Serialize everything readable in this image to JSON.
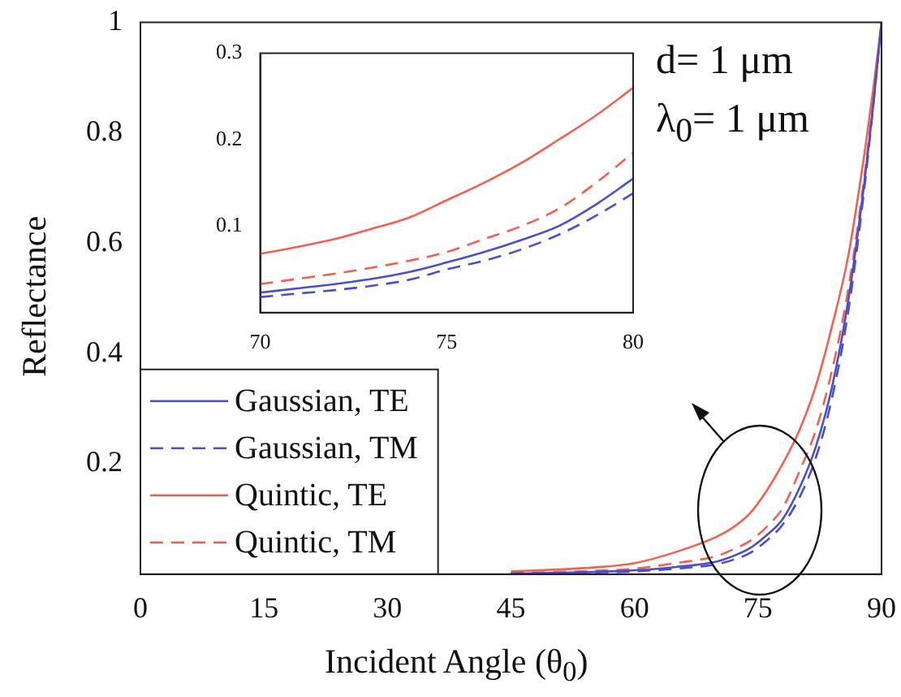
{
  "chart_data": [
    {
      "type": "line",
      "xlabel": "Incident Angle (θ$_{0}$)",
      "ylabel": "Reflectance",
      "xlim": [
        0,
        90
      ],
      "xticks": [
        0,
        15,
        30,
        45,
        60,
        75,
        90
      ],
      "ylim": [
        0,
        1
      ],
      "yticks": [
        0.2,
        0.4,
        0.6,
        0.8,
        1
      ],
      "legend": "bottom left",
      "marker": "none",
      "annotations": [
        "d= 1 μm",
        "λ$_{0}$= 1 μm"
      ],
      "x": [
        45,
        55,
        60,
        65,
        70,
        72,
        74,
        76,
        78,
        80,
        82,
        84,
        86,
        88,
        89,
        90
      ],
      "series": [
        {
          "name": "Gaussian, TE",
          "color": "#4a4ed0",
          "line_style": "solid",
          "values": [
            0.001,
            0.004,
            0.007,
            0.013,
            0.023,
            0.033,
            0.047,
            0.07,
            0.1,
            0.155,
            0.23,
            0.34,
            0.5,
            0.72,
            0.85,
            1
          ]
        },
        {
          "name": "Gaussian, TM",
          "color": "#4a4ed0",
          "line_style": "dashed",
          "values": [
            0.001,
            0.003,
            0.005,
            0.01,
            0.018,
            0.026,
            0.038,
            0.06,
            0.09,
            0.138,
            0.21,
            0.32,
            0.48,
            0.71,
            0.85,
            1
          ]
        },
        {
          "name": "Quintic, TE",
          "color": "#f26050",
          "line_style": "solid",
          "values": [
            0.005,
            0.012,
            0.02,
            0.04,
            0.068,
            0.085,
            0.11,
            0.15,
            0.2,
            0.26,
            0.34,
            0.45,
            0.58,
            0.77,
            0.88,
            1
          ]
        },
        {
          "name": "Quintic, TM",
          "color": "#f26050",
          "line_style": "dashed",
          "values": [
            0.002,
            0.006,
            0.01,
            0.02,
            0.033,
            0.045,
            0.06,
            0.085,
            0.12,
            0.185,
            0.26,
            0.37,
            0.52,
            0.73,
            0.86,
            1
          ]
        }
      ]
    },
    {
      "type": "line",
      "xlim": [
        70,
        80
      ],
      "xticks": [
        70,
        75,
        80
      ],
      "ylim": [
        0,
        0.3
      ],
      "yticks": [
        0.1,
        0.2,
        0.3
      ],
      "marker": "none",
      "x": [
        70,
        71,
        72,
        73,
        74,
        75,
        76,
        77,
        78,
        79,
        80
      ],
      "series": [
        {
          "color": "#4a4ed0",
          "line_style": "solid",
          "values": [
            0.023,
            0.028,
            0.033,
            0.039,
            0.047,
            0.058,
            0.07,
            0.084,
            0.1,
            0.125,
            0.155
          ]
        },
        {
          "color": "#4a4ed0",
          "line_style": "dashed",
          "values": [
            0.018,
            0.022,
            0.026,
            0.031,
            0.038,
            0.05,
            0.06,
            0.073,
            0.09,
            0.112,
            0.138
          ]
        },
        {
          "color": "#f26050",
          "line_style": "solid",
          "values": [
            0.068,
            0.076,
            0.085,
            0.097,
            0.11,
            0.13,
            0.15,
            0.173,
            0.2,
            0.228,
            0.26
          ]
        },
        {
          "color": "#f26050",
          "line_style": "dashed",
          "values": [
            0.033,
            0.039,
            0.045,
            0.052,
            0.06,
            0.07,
            0.085,
            0.1,
            0.12,
            0.15,
            0.185
          ]
        }
      ]
    }
  ]
}
